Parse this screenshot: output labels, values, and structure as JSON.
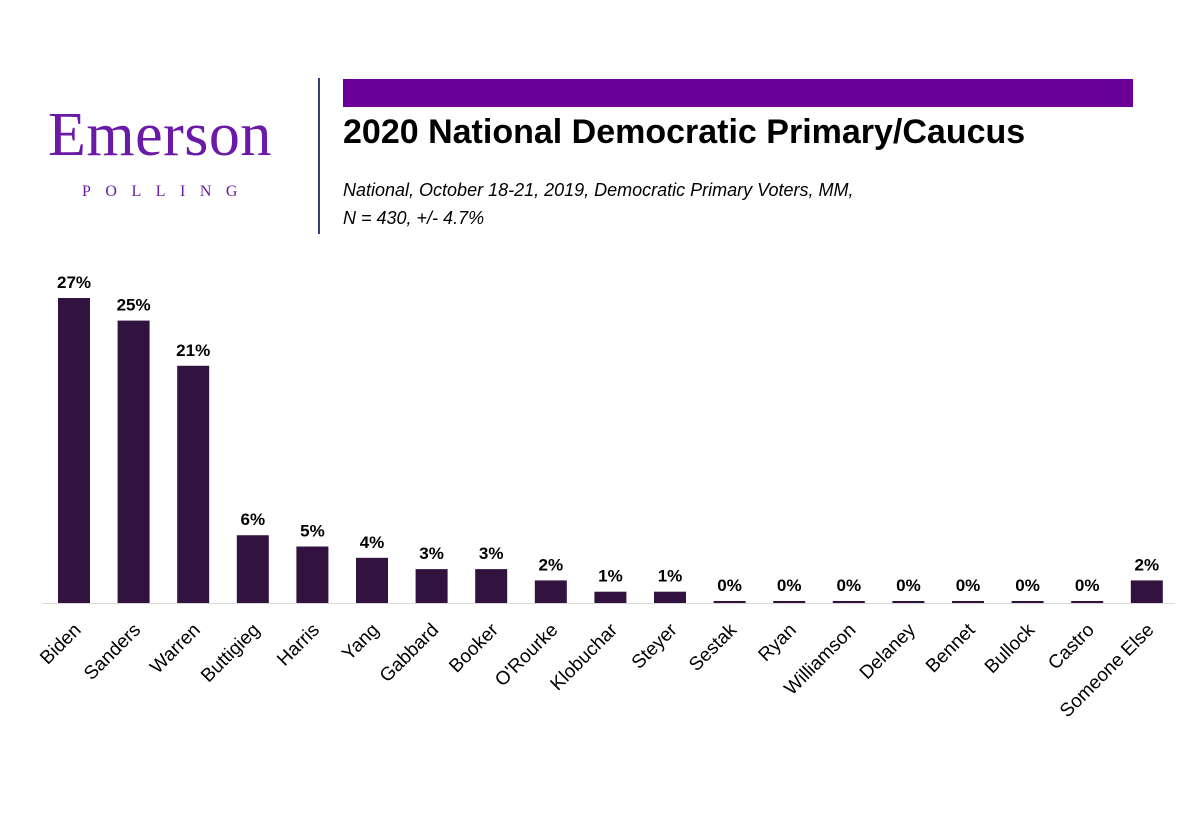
{
  "logo": {
    "wordmark": "Emerson",
    "subtext": "POLLING"
  },
  "header": {
    "title": "2020 National Democratic Primary/Caucus",
    "subtitle_line1": "National, October 18-21, 2019, Democratic Primary Voters, MM,",
    "subtitle_line2": "N = 430, +/- 4.7%"
  },
  "colors": {
    "brand_purple": "#6b0099",
    "bar": "#32123f",
    "logo": "#6a1aa6"
  },
  "chart_data": {
    "type": "bar",
    "categories": [
      "Biden",
      "Sanders",
      "Warren",
      "Buttigieg",
      "Harris",
      "Yang",
      "Gabbard",
      "Booker",
      "O'Rourke",
      "Klobuchar",
      "Steyer",
      "Sestak",
      "Ryan",
      "Williamson",
      "Delaney",
      "Bennet",
      "Bullock",
      "Castro",
      "Someone Else"
    ],
    "values": [
      27,
      25,
      21,
      6,
      5,
      4,
      3,
      3,
      2,
      1,
      1,
      0,
      0,
      0,
      0,
      0,
      0,
      0,
      2
    ],
    "data_labels": [
      "27%",
      "25%",
      "21%",
      "6%",
      "5%",
      "4%",
      "3%",
      "3%",
      "2%",
      "1%",
      "1%",
      "0%",
      "0%",
      "0%",
      "0%",
      "0%",
      "0%",
      "0%",
      "2%"
    ],
    "ylim": [
      0,
      27
    ],
    "grid": false,
    "legend": "none"
  }
}
